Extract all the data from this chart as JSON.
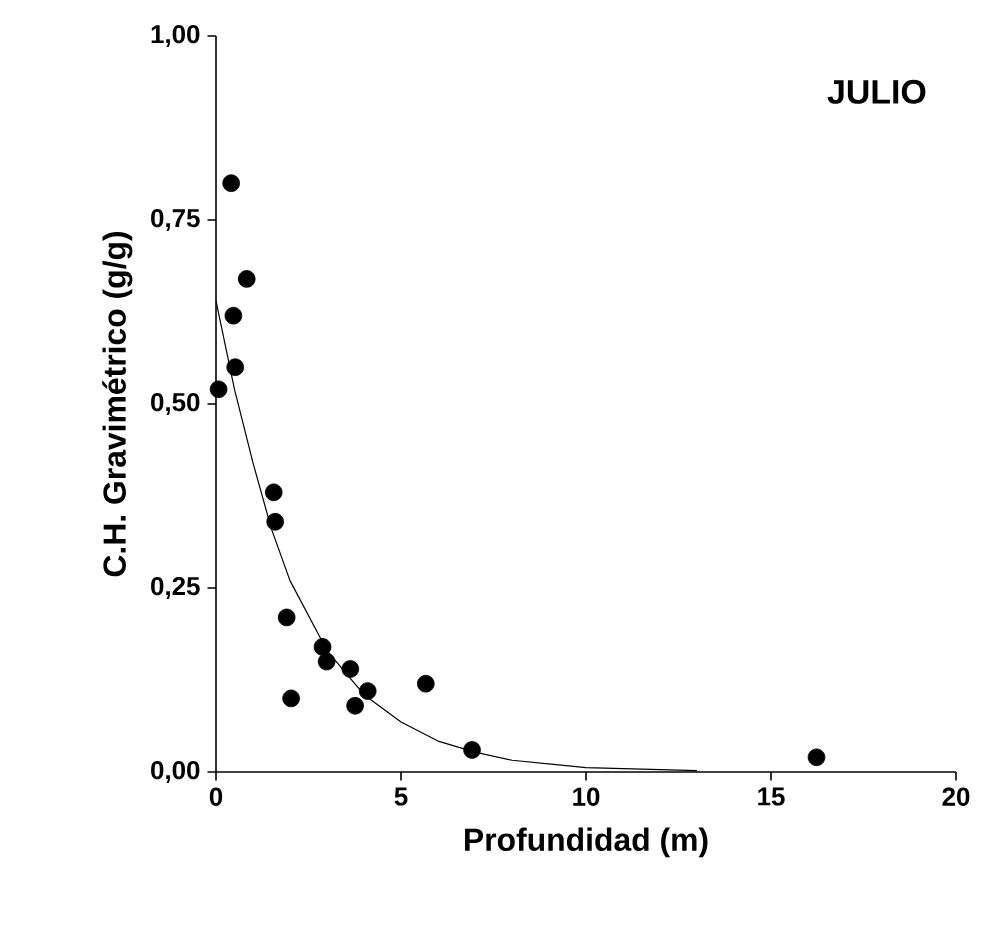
{
  "chart_data": {
    "type": "scatter",
    "title": "JULIO",
    "xlabel": "Profundidad (m)",
    "ylabel": "C.H. Gravimétrico (g/g)",
    "xlim": [
      0,
      20
    ],
    "xticks": [
      0,
      5,
      10,
      15,
      20
    ],
    "ylim": [
      0,
      1
    ],
    "yticks": [
      {
        "value": 0,
        "label": "0,00"
      },
      {
        "value": 0.25,
        "label": "0,25"
      },
      {
        "value": 0.5,
        "label": "0,50"
      },
      {
        "value": 0.75,
        "label": "0,75"
      },
      {
        "value": 1,
        "label": "1,00"
      }
    ],
    "marker": "circle",
    "series": [
      {
        "color": "#000000",
        "x": [
          0.07,
          0.41,
          0.47,
          0.52,
          0.83,
          1.56,
          1.6,
          1.91,
          2.03,
          2.88,
          2.99,
          3.63,
          3.76,
          4.1,
          5.67,
          6.92,
          16.23
        ],
        "values": [
          0.52,
          0.8,
          0.62,
          0.55,
          0.67,
          0.38,
          0.34,
          0.21,
          0.1,
          0.17,
          0.15,
          0.14,
          0.09,
          0.11,
          0.12,
          0.03,
          0.02
        ]
      },
      {
        "type": "line",
        "color": "#000000",
        "marker": "none",
        "x": [
          0,
          0.5,
          1,
          1.5,
          2,
          3,
          4,
          5,
          6,
          7,
          8,
          10,
          13
        ],
        "values": [
          0.64,
          0.52,
          0.42,
          0.33,
          0.26,
          0.165,
          0.105,
          0.068,
          0.042,
          0.027,
          0.016,
          0.006,
          0.002
        ]
      }
    ]
  }
}
